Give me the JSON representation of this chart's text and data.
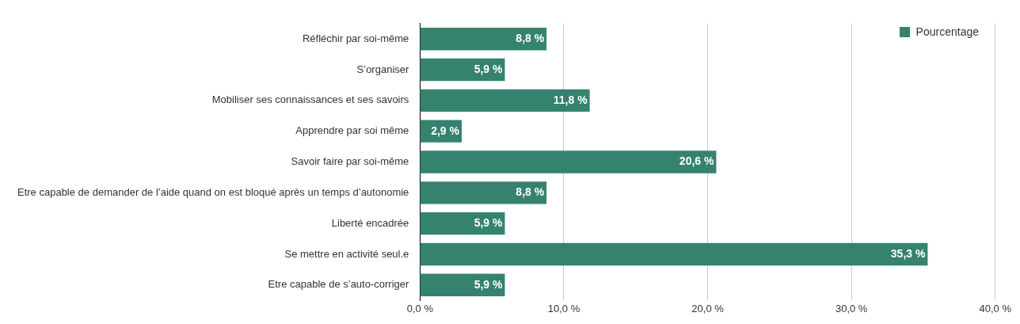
{
  "chart_data": {
    "type": "bar",
    "orientation": "horizontal",
    "categories": [
      "Réfléchir par soi-même",
      "S’organiser",
      "Mobiliser ses connaissances et ses savoirs",
      "Apprendre par soi même",
      "Savoir faire par soi-même",
      "Etre capable de demander de l’aide quand on est bloqué après un temps d’autonomie",
      "Liberté encadrée",
      "Se mettre en activité seul.e",
      "Etre capable de s’auto-corriger"
    ],
    "series": [
      {
        "name": "Pourcentage",
        "color": "#35826f",
        "values": [
          8.8,
          5.9,
          11.8,
          2.9,
          20.6,
          8.8,
          5.9,
          35.3,
          5.9
        ],
        "value_labels": [
          "8,8 %",
          "5,9 %",
          "11,8 %",
          "2,9 %",
          "20,6 %",
          "8,8 %",
          "5,9 %",
          "35,3 %",
          "5,9 %"
        ]
      }
    ],
    "xlim": [
      0,
      40
    ],
    "xticks": [
      {
        "value": 0,
        "label": "0,0 %"
      },
      {
        "value": 10,
        "label": "10,0 %"
      },
      {
        "value": 20,
        "label": "20,0 %"
      },
      {
        "value": 30,
        "label": "30,0 %"
      },
      {
        "value": 40,
        "label": "40,0 %"
      }
    ],
    "grid": "x",
    "legend": "top right"
  }
}
